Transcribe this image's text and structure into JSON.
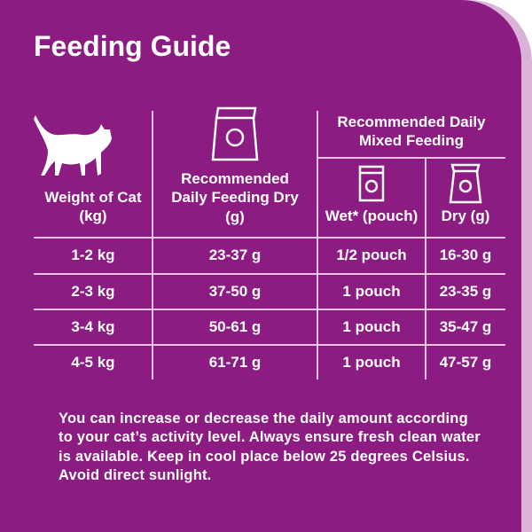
{
  "header": {
    "title": "Feeding Guide"
  },
  "table": {
    "group_header": "Recommended Daily Mixed Feeding",
    "columns": [
      "Weight of Cat (kg)",
      "Recommended Daily Feeding Dry (g)",
      "Wet* (pouch)",
      "Dry (g)"
    ],
    "rows": [
      [
        "1-2 kg",
        "23-37 g",
        "1/2 pouch",
        "16-30 g"
      ],
      [
        "2-3 kg",
        "37-50 g",
        "1 pouch",
        "23-35 g"
      ],
      [
        "3-4 kg",
        "50-61 g",
        "1 pouch",
        "35-47 g"
      ],
      [
        "4-5 kg",
        "61-71 g",
        "1 pouch",
        "47-57 g"
      ]
    ]
  },
  "footer": {
    "note": "You can increase or decrease the daily amount according to your cat’s activity level. Always ensure fresh clean water is available. Keep in cool place below 25 degrees Celsius. Avoid direct sunlight."
  }
}
